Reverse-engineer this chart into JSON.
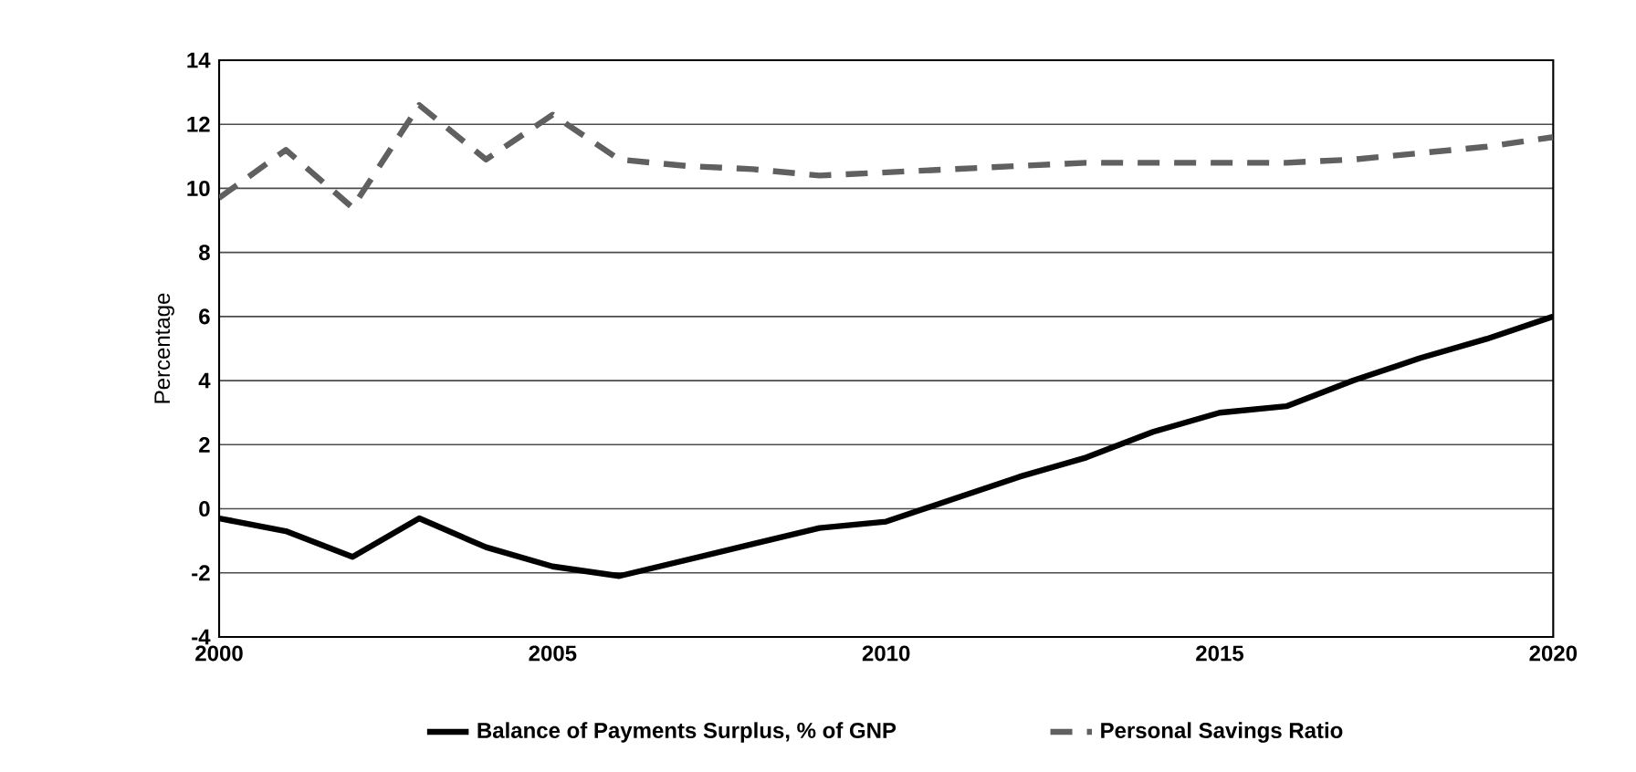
{
  "chart_data": {
    "type": "line",
    "ylabel": "Percentage",
    "x": [
      2000,
      2001,
      2002,
      2003,
      2004,
      2005,
      2006,
      2007,
      2008,
      2009,
      2010,
      2011,
      2012,
      2013,
      2014,
      2015,
      2016,
      2017,
      2018,
      2019,
      2020
    ],
    "series": [
      {
        "name": "Balance of Payments Surplus, % of GNP",
        "color": "#000000",
        "line_style": "solid",
        "values": [
          -0.3,
          -0.7,
          -1.5,
          -0.3,
          -1.2,
          -1.8,
          -2.1,
          -1.6,
          -1.1,
          -0.6,
          -0.4,
          0.3,
          1.0,
          1.6,
          2.4,
          3.0,
          3.2,
          4.0,
          4.7,
          5.3,
          6.0
        ]
      },
      {
        "name": "Personal Savings Ratio",
        "color": "#606060",
        "line_style": "dashed",
        "values": [
          9.7,
          11.2,
          9.4,
          12.6,
          10.9,
          12.3,
          10.9,
          10.7,
          10.6,
          10.4,
          10.5,
          10.6,
          10.7,
          10.8,
          10.8,
          10.8,
          10.8,
          10.9,
          11.1,
          11.3,
          11.6
        ]
      }
    ],
    "xlim": [
      2000,
      2020
    ],
    "xticks": [
      2000,
      2005,
      2010,
      2015,
      2020
    ],
    "ylim": [
      -4,
      14
    ],
    "yticks": [
      -4,
      -2,
      0,
      2,
      4,
      6,
      8,
      10,
      12,
      14
    ],
    "grid": "y",
    "legend": "bottom",
    "marker": "none"
  }
}
